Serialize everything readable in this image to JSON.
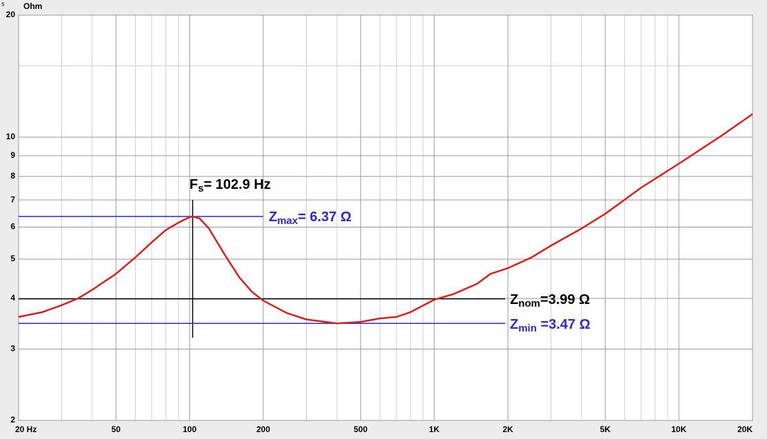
{
  "chart_data": {
    "type": "line",
    "corner_label": "s",
    "y_label": "Ohm",
    "x_log": true,
    "y_log": true,
    "grid": true,
    "x": [
      20,
      25,
      30,
      35,
      40,
      50,
      60,
      70,
      80,
      90,
      100,
      102.9,
      110,
      120,
      140,
      160,
      180,
      200,
      250,
      300,
      400,
      500,
      600,
      700,
      800,
      1000,
      1200,
      1500,
      1700,
      2000,
      2500,
      3000,
      4000,
      5000,
      7000,
      10000,
      15000,
      20000
    ],
    "series": [
      {
        "color": "#d42020",
        "values": [
          3.6,
          3.7,
          3.85,
          4.0,
          4.2,
          4.6,
          5.05,
          5.5,
          5.9,
          6.15,
          6.35,
          6.37,
          6.3,
          5.95,
          5.1,
          4.5,
          4.15,
          3.95,
          3.68,
          3.55,
          3.47,
          3.5,
          3.57,
          3.6,
          3.7,
          3.97,
          4.1,
          4.35,
          4.6,
          4.75,
          5.05,
          5.4,
          5.95,
          6.47,
          7.5,
          8.6,
          10.1,
          11.4
        ]
      }
    ],
    "xlim": [
      20,
      20000
    ],
    "ylim": [
      2,
      20
    ],
    "xticks": [
      {
        "value": 20,
        "label": "20  Hz"
      },
      50,
      100,
      200,
      500,
      {
        "value": 1000,
        "label": "1K"
      },
      {
        "value": 2000,
        "label": "2K"
      },
      {
        "value": 5000,
        "label": "5K"
      },
      {
        "value": 10000,
        "label": "10K"
      },
      {
        "value": 20000,
        "label": "20K"
      }
    ],
    "yticks": [
      2,
      3,
      4,
      5,
      6,
      7,
      8,
      9,
      10,
      20
    ],
    "x_minor": [
      30,
      40,
      60,
      70,
      80,
      90,
      300,
      400,
      600,
      700,
      800,
      900,
      3000,
      4000,
      6000,
      7000,
      8000,
      9000
    ],
    "y_minor": [
      15
    ],
    "reference_lines": [
      {
        "axis": "x",
        "value": 102.9,
        "color": "#000000",
        "label": [
          "F",
          "s",
          "= 102.9 Hz"
        ]
      },
      {
        "axis": "y",
        "value": 6.37,
        "color": "#2a2ad0",
        "label": [
          "Z",
          "max",
          "= 6.37 Ω"
        ]
      },
      {
        "axis": "y",
        "value": 3.99,
        "color": "#000000",
        "label": [
          "Z",
          "nom",
          "=3.99 Ω"
        ]
      },
      {
        "axis": "y",
        "value": 3.47,
        "color": "#2a2ad0",
        "label": [
          "Z",
          "min",
          " =3.47 Ω"
        ]
      }
    ]
  }
}
